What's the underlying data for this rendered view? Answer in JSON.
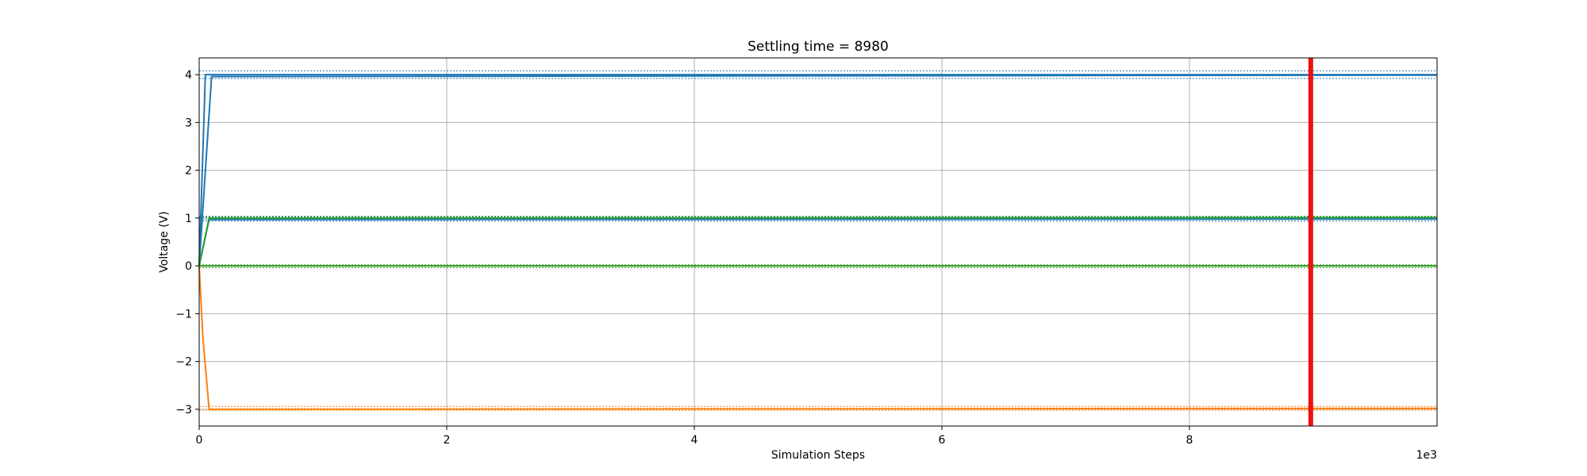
{
  "chart_data": {
    "type": "line",
    "title": "Settling time = 8980",
    "xlabel": "Simulation Steps",
    "ylabel": "Voltage (V)",
    "x_offset_label": "1e3",
    "xlim": [
      0,
      10000
    ],
    "ylim": [
      -3.35,
      4.35
    ],
    "x_ticks": [
      0,
      2000,
      4000,
      6000,
      8000
    ],
    "x_tick_labels": [
      "0",
      "2",
      "4",
      "6",
      "8"
    ],
    "y_ticks": [
      -3,
      -2,
      -1,
      0,
      1,
      2,
      3,
      4
    ],
    "y_tick_labels": [
      "−3",
      "−2",
      "−1",
      "0",
      "1",
      "2",
      "3",
      "4"
    ],
    "grid": true,
    "series": [
      {
        "color": "#1f77b4",
        "x": [
          0,
          50,
          10000
        ],
        "y": [
          0,
          4,
          4
        ],
        "tolerance_band": [
          3.92,
          4.08
        ]
      },
      {
        "color": "#1f77b4",
        "x": [
          0,
          100,
          10000
        ],
        "y": [
          0,
          3.96,
          3.99
        ],
        "tolerance_band": null
      },
      {
        "color": "#1f77b4",
        "x": [
          0,
          80,
          10000
        ],
        "y": [
          0,
          0.97,
          0.98
        ],
        "tolerance_band": [
          0.94,
          1.02
        ]
      },
      {
        "color": "#2ca02c",
        "x": [
          0,
          80,
          10000
        ],
        "y": [
          0,
          1.0,
          1.01
        ],
        "tolerance_band": [
          0.98,
          1.04
        ]
      },
      {
        "color": "#ff7f0e",
        "x": [
          0,
          10000
        ],
        "y": [
          0,
          0
        ],
        "tolerance_band": null
      },
      {
        "color": "#2ca02c",
        "x": [
          0,
          10000
        ],
        "y": [
          0,
          0
        ],
        "tolerance_band": [
          -0.04,
          0.02
        ]
      },
      {
        "color": "#ff7f0e",
        "x": [
          0,
          30,
          60,
          80,
          10000
        ],
        "y": [
          0,
          -1.5,
          -2.4,
          -3.0,
          -2.98
        ],
        "tolerance_band": [
          -3.02,
          -2.94
        ]
      }
    ],
    "markers": [
      {
        "type": "vertical_line",
        "x": 8980,
        "color": "#ee1111"
      }
    ]
  }
}
